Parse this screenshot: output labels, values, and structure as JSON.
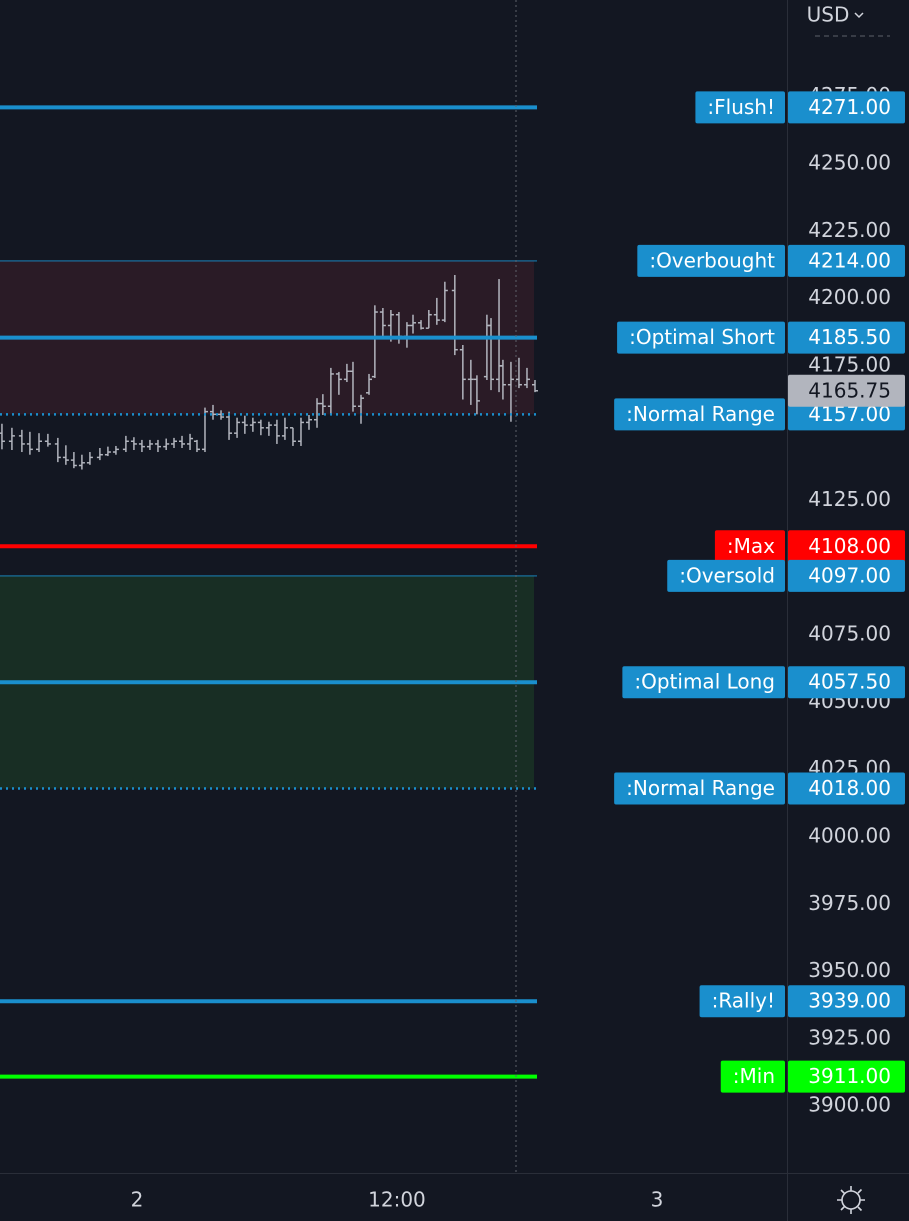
{
  "chart_data": {
    "type": "ohlc",
    "currency": "USD",
    "bar_color": "#b2b5be",
    "grid": false,
    "x": [
      -6.23,
      -5.77,
      -5.31,
      -4.94,
      -4.52,
      -4.11,
      -3.65,
      -3.28,
      -2.91,
      -2.54,
      -2.17,
      -1.71,
      -1.34,
      -0.97,
      -0.51,
      -0.14,
      0.23,
      0.6,
      0.97,
      1.35,
      1.71,
      2.08,
      2.45,
      2.77,
      3.14,
      3.51,
      3.88,
      4.25,
      4.62,
      4.98,
      5.35,
      5.72,
      6.09,
      6.46,
      6.83,
      7.2,
      7.57,
      7.94,
      8.31,
      8.58,
      8.95,
      9.32,
      9.69,
      9.97,
      10.34,
      10.71,
      10.98,
      11.35,
      11.72,
      12.09,
      12.46,
      12.74,
      13.11,
      13.47,
      13.84,
      14.21,
      14.67,
      15.04,
      15.41,
      15.69,
      16.15,
      16.34,
      16.71,
      16.89,
      17.26,
      17.63,
      18.0,
      18.37
    ],
    "open": [
      4150,
      4147,
      4149,
      4146,
      4144,
      4147,
      4146,
      4141,
      4140,
      4138,
      4139,
      4141,
      4142,
      4143,
      4144,
      4147,
      4146,
      4145,
      4146,
      4145,
      4146,
      4147,
      4146,
      4147,
      4144,
      4158,
      4157,
      4156,
      4150,
      4154,
      4153,
      4154,
      4152,
      4153,
      4149,
      4152,
      4147,
      4154,
      4155,
      4161,
      4160,
      4172,
      4170,
      4173,
      4160,
      4165,
      4171,
      4195,
      4190,
      4194,
      4186,
      4190,
      4191,
      4189,
      4194,
      4192,
      4203,
      4181,
      4170,
      4170,
      4171,
      4190,
      4170,
      4175,
      4168,
      4170,
      4168,
      4168
    ],
    "high": [
      4153.5,
      4152,
      4151.25,
      4150.5,
      4150,
      4149.75,
      4148.25,
      4145.5,
      4143,
      4142,
      4143,
      4144.5,
      4145,
      4145.25,
      4149,
      4148.5,
      4147.5,
      4147.5,
      4147.5,
      4148,
      4148.25,
      4149,
      4149.75,
      4147.5,
      4159.5,
      4160.5,
      4158.5,
      4158,
      4155.75,
      4156.5,
      4155.75,
      4155,
      4154.25,
      4155,
      4155.75,
      4152,
      4155.75,
      4156.75,
      4163,
      4164.5,
      4174.25,
      4172.75,
      4175.75,
      4176.5,
      4164.25,
      4172,
      4197.5,
      4196.5,
      4195.75,
      4195,
      4191.25,
      4194,
      4192,
      4195.75,
      4200.25,
      4206.25,
      4208.75,
      4182.75,
      4177.25,
      4171.5,
      4194,
      4192.75,
      4207.25,
      4177.25,
      4176.5,
      4178,
      4174.25,
      4169.75
    ],
    "low": [
      4144,
      4143.75,
      4143,
      4142,
      4143,
      4145,
      4139.25,
      4138.25,
      4137,
      4136.5,
      4138.25,
      4140,
      4141.5,
      4142,
      4143,
      4143.75,
      4143,
      4143.75,
      4143,
      4143.75,
      4144.5,
      4144.5,
      4143.75,
      4143,
      4143,
      4155,
      4155,
      4147.5,
      4148.25,
      4149.75,
      4150.5,
      4149.25,
      4149,
      4146,
      4147.5,
      4145.25,
      4145.25,
      4151.25,
      4152,
      4156.75,
      4156.75,
      4164.25,
      4169,
      4158,
      4153.5,
      4164.25,
      4170.5,
      4185.5,
      4184,
      4183.25,
      4181.75,
      4187,
      4188.5,
      4189,
      4190.25,
      4191.25,
      4179,
      4162.5,
      4160.5,
      4157,
      4169.75,
      4166,
      4165.25,
      4162.5,
      4154.25,
      4166.75,
      4166.75,
      4165.25
    ],
    "close": [
      4147,
      4149,
      4146,
      4144,
      4147,
      4146,
      4141,
      4140,
      4138,
      4139,
      4141,
      4142,
      4143,
      4144,
      4147,
      4146,
      4145,
      4146,
      4145,
      4146,
      4147,
      4146,
      4148,
      4144,
      4158,
      4157,
      4156,
      4150,
      4154,
      4153,
      4154,
      4152,
      4153,
      4149,
      4152,
      4147,
      4154,
      4155,
      4161,
      4160,
      4172,
      4170,
      4173,
      4160,
      4163,
      4170,
      4195,
      4190,
      4194,
      4186,
      4190,
      4191,
      4189,
      4194,
      4192,
      4203,
      4181,
      4170,
      4170,
      4162,
      4190,
      4170,
      4175,
      4168,
      4170,
      4168,
      4170,
      4165.75
    ],
    "last_price_color": "#b2b5be",
    "xlim": [
      -6.32,
      30
    ],
    "xticks": [
      {
        "value": 0,
        "label": "2"
      },
      {
        "value": 12,
        "label": "12:00"
      },
      {
        "value": 24,
        "label": "3"
      }
    ],
    "ylim": [
      3875.2,
      4310.9
    ],
    "yticks": [
      {
        "value": 3900,
        "label": "3900.00"
      },
      {
        "value": 3925,
        "label": "3925.00"
      },
      {
        "value": 3950,
        "label": "3950.00"
      },
      {
        "value": 3975,
        "label": "3975.00"
      },
      {
        "value": 4000,
        "label": "4000.00"
      },
      {
        "value": 4025,
        "label": "4025.00"
      },
      {
        "value": 4050,
        "label": "4050.00"
      },
      {
        "value": 4075,
        "label": "4075.00"
      },
      {
        "value": 4125,
        "label": "4125.00"
      },
      {
        "value": 4175,
        "label": "4175.00"
      },
      {
        "value": 4200,
        "label": "4200.00"
      },
      {
        "value": 4225,
        "label": "4225.00"
      },
      {
        "value": 4250,
        "label": "4250.00"
      },
      {
        "value": 4275,
        "label": "4275.00"
      }
    ],
    "levels": [
      {
        "label": ":Flush!",
        "value": 4271,
        "value_label": "4271.00",
        "color": "#1a8fcd",
        "style": "thick"
      },
      {
        "label": ":Overbought",
        "value": 4214,
        "value_label": "4214.00",
        "color": "#1a8fcd",
        "style": "thin",
        "band": "#2a1b26"
      },
      {
        "label": ":Optimal Short",
        "value": 4185.5,
        "value_label": "4185.50",
        "color": "#1a8fcd",
        "style": "thick"
      },
      {
        "label": ":Normal Range",
        "value": 4157,
        "value_label": "4157.00",
        "color": "#1a8fcd",
        "style": "dotted"
      },
      {
        "label": ":Max",
        "value": 4108,
        "value_label": "4108.00",
        "color": "#ff0000",
        "style": "thick"
      },
      {
        "label": ":Oversold",
        "value": 4097,
        "value_label": "4097.00",
        "color": "#1a8fcd",
        "style": "thin",
        "band": "#182e24"
      },
      {
        "label": ":Optimal Long",
        "value": 4057.5,
        "value_label": "4057.50",
        "color": "#1a8fcd",
        "style": "thick"
      },
      {
        "label": ":Normal Range",
        "value": 4018,
        "value_label": "4018.00",
        "color": "#1a8fcd",
        "style": "dotted"
      },
      {
        "label": ":Rally!",
        "value": 3939,
        "value_label": "3939.00",
        "color": "#1a8fcd",
        "style": "thick"
      },
      {
        "label": ":Min",
        "value": 3911,
        "value_label": "3911.00",
        "color": "#00ff00",
        "style": "thick"
      }
    ]
  }
}
